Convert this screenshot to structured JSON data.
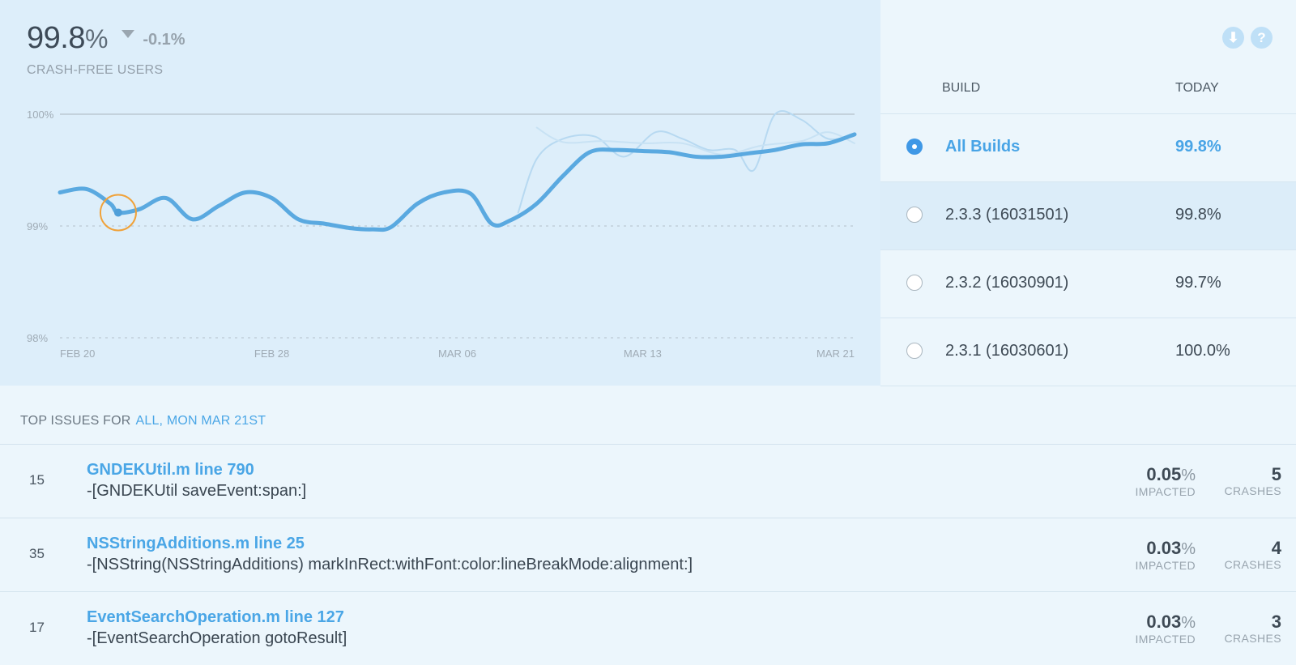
{
  "metric": {
    "value": "99.8",
    "unit": "%",
    "delta": "-0.1%",
    "label": "CRASH-FREE USERS"
  },
  "chart_data": {
    "type": "line",
    "y_ticks": [
      {
        "value": 100,
        "label": "100%"
      },
      {
        "value": 99,
        "label": "99%"
      },
      {
        "value": 98,
        "label": "98%"
      }
    ],
    "x_ticks": [
      {
        "value": 0,
        "label": "FEB 20"
      },
      {
        "value": 8,
        "label": "FEB 28"
      },
      {
        "value": 15,
        "label": "MAR 06"
      },
      {
        "value": 22,
        "label": "MAR 13"
      },
      {
        "value": 30,
        "label": "MAR 21"
      }
    ],
    "ylim": [
      98,
      100
    ],
    "xlim": [
      0,
      30
    ],
    "series": [
      {
        "name": "All Builds",
        "color": "#5aa9e0",
        "points": [
          [
            0,
            99.3
          ],
          [
            1,
            99.33
          ],
          [
            1.9,
            99.2
          ],
          [
            2.2,
            99.12
          ],
          [
            3,
            99.15
          ],
          [
            4,
            99.25
          ],
          [
            5,
            99.06
          ],
          [
            6,
            99.18
          ],
          [
            7,
            99.3
          ],
          [
            8,
            99.25
          ],
          [
            9,
            99.06
          ],
          [
            10,
            99.02
          ],
          [
            11,
            98.98
          ],
          [
            11.8,
            98.97
          ],
          [
            12.5,
            98.99
          ],
          [
            13.5,
            99.2
          ],
          [
            14.5,
            99.3
          ],
          [
            15.5,
            99.29
          ],
          [
            16.3,
            99.02
          ],
          [
            17,
            99.05
          ],
          [
            18,
            99.2
          ],
          [
            19,
            99.45
          ],
          [
            20,
            99.66
          ],
          [
            21,
            99.68
          ],
          [
            22,
            99.67
          ],
          [
            23,
            99.66
          ],
          [
            24,
            99.62
          ],
          [
            25,
            99.62
          ],
          [
            26,
            99.65
          ],
          [
            27,
            99.68
          ],
          [
            28,
            99.73
          ],
          [
            29,
            99.74
          ],
          [
            30,
            99.82
          ]
        ]
      },
      {
        "name": "2.3.3 (16031501)",
        "color": "#b7d9f1",
        "points": [
          [
            17.3,
            99.12
          ],
          [
            18,
            99.6
          ],
          [
            19,
            99.78
          ],
          [
            20.2,
            99.8
          ],
          [
            21.3,
            99.62
          ],
          [
            22.5,
            99.84
          ],
          [
            23.5,
            99.78
          ],
          [
            24.5,
            99.68
          ],
          [
            25.5,
            99.68
          ],
          [
            26.2,
            99.5
          ],
          [
            27,
            100
          ],
          [
            28,
            99.95
          ],
          [
            29,
            99.78
          ],
          [
            30,
            99.82
          ]
        ]
      },
      {
        "name": "2.3.2 (16030901)",
        "color": "#c8e2f4",
        "points": [
          [
            18,
            99.88
          ],
          [
            19,
            99.75
          ],
          [
            20.5,
            99.76
          ],
          [
            22,
            99.74
          ],
          [
            23.5,
            99.74
          ],
          [
            25,
            99.64
          ],
          [
            26.5,
            99.72
          ],
          [
            28,
            99.76
          ],
          [
            29,
            99.84
          ],
          [
            30,
            99.74
          ]
        ]
      }
    ],
    "highlight": {
      "x": 2.2,
      "y": 99.12
    }
  },
  "top_icons": {
    "download_glyph": "⬇",
    "help_glyph": "?"
  },
  "builds": {
    "header_build": "BUILD",
    "header_today": "TODAY",
    "rows": [
      {
        "name": "All Builds",
        "value": "99.8%"
      },
      {
        "name": "2.3.3 (16031501)",
        "value": "99.8%"
      },
      {
        "name": "2.3.2 (16030901)",
        "value": "99.7%"
      },
      {
        "name": "2.3.1 (16030601)",
        "value": "100.0%"
      }
    ]
  },
  "issues": {
    "title": "TOP ISSUES FOR",
    "filter": "ALL, MON MAR 21ST",
    "impacted_label": "IMPACTED",
    "crashes_label": "CRASHES",
    "rows": [
      {
        "num": "15",
        "file": "GNDEKUtil.m line 790",
        "method": "-[GNDEKUtil saveEvent:span:]",
        "impacted": "0.05",
        "crashes": "5"
      },
      {
        "num": "35",
        "file": "NSStringAdditions.m line 25",
        "method": "-[NSString(NSStringAdditions) markInRect:withFont:color:lineBreakMode:alignment:]",
        "impacted": "0.03",
        "crashes": "4"
      },
      {
        "num": "17",
        "file": "EventSearchOperation.m line 127",
        "method": "-[EventSearchOperation gotoResult]",
        "impacted": "0.03",
        "crashes": "3"
      }
    ]
  }
}
